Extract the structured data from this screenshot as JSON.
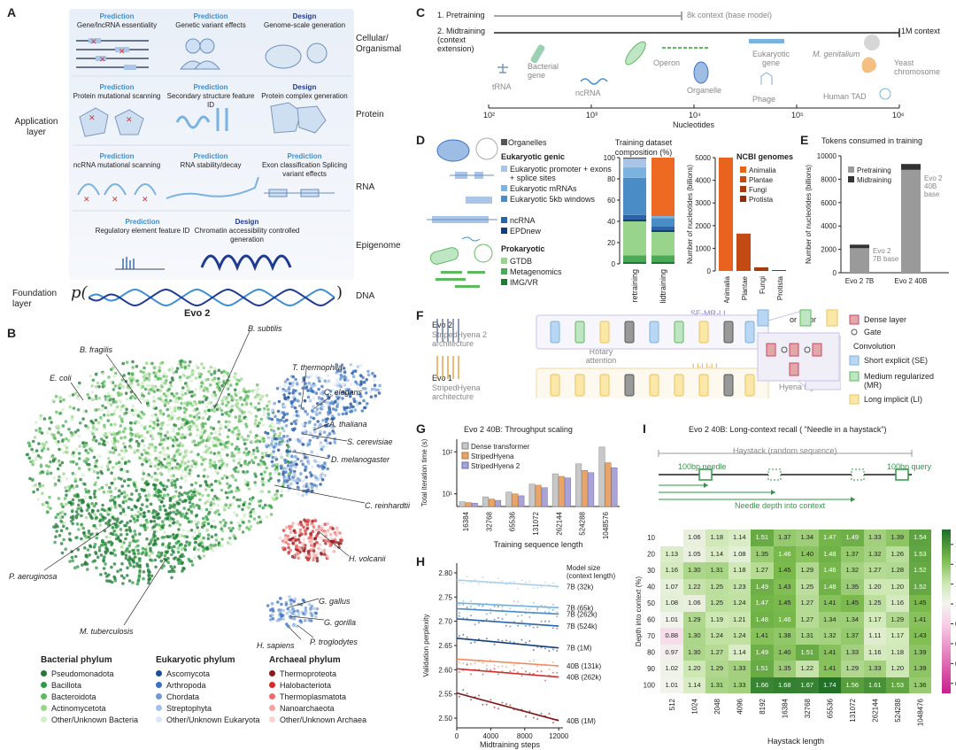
{
  "panels": {
    "a": "A",
    "b": "B",
    "c": "C",
    "d": "D",
    "e": "E",
    "f": "F",
    "g": "G",
    "h": "H",
    "i": "I"
  },
  "panelA": {
    "application_layer": "Application layer",
    "foundation_layer": "Foundation layer",
    "model_name": "Evo 2",
    "p_open": "p(",
    "p_close": ")",
    "rows": [
      {
        "label": "Cellular/ Organismal",
        "items": [
          {
            "kind": "Prediction",
            "text": "Gene/lncRNA essentiality"
          },
          {
            "kind": "Prediction",
            "text": "Genetic variant effects"
          },
          {
            "kind": "Design",
            "text": "Genome-scale generation"
          }
        ]
      },
      {
        "label": "Protein",
        "items": [
          {
            "kind": "Prediction",
            "text": "Protein mutational scanning"
          },
          {
            "kind": "Prediction",
            "text": "Secondary structure feature ID"
          },
          {
            "kind": "Design",
            "text": "Protein complex generation"
          }
        ]
      },
      {
        "label": "RNA",
        "items": [
          {
            "kind": "Prediction",
            "text": "ncRNA mutational scanning"
          },
          {
            "kind": "Prediction",
            "text": "RNA stability/decay"
          },
          {
            "kind": "Prediction",
            "text": "Exon classification Splicing variant effects"
          }
        ]
      },
      {
        "label": "Epigenome",
        "items": [
          {
            "kind": "Prediction",
            "text": "Regulatory element feature ID"
          },
          {
            "kind": "Design",
            "text": "Chromatin accessibility controlled generation"
          }
        ]
      }
    ],
    "dna_label": "DNA"
  },
  "panelB": {
    "species": [
      "B. subtilis",
      "B. fragilis",
      "E. coli",
      "T. thermophila",
      "C. elegans",
      "A. thaliana",
      "S. cerevisiae",
      "D. melanogaster",
      "C. reinhardtii",
      "H. volcanii",
      "P. aeruginosa",
      "M. tuberculosis",
      "G. gallus",
      "G. gorilla",
      "H. sapiens",
      "P. troglodytes"
    ],
    "legend": {
      "bacterial_title": "Bacterial phylum",
      "bacterial": [
        {
          "name": "Pseudomonadota",
          "color": "#1e7a34"
        },
        {
          "name": "Bacillota",
          "color": "#2f9a45"
        },
        {
          "name": "Bacteroidota",
          "color": "#5cbb5c"
        },
        {
          "name": "Actinomycetota",
          "color": "#98d48b"
        },
        {
          "name": "Other/Unknown Bacteria",
          "color": "#d5edc9"
        }
      ],
      "eukaryotic_title": "Eukaryotic phylum",
      "eukaryotic": [
        {
          "name": "Ascomycota",
          "color": "#1c4f9c"
        },
        {
          "name": "Arthropoda",
          "color": "#3a72c1"
        },
        {
          "name": "Chordata",
          "color": "#6f9ad6"
        },
        {
          "name": "Streptophyta",
          "color": "#a5c0e8"
        },
        {
          "name": "Other/Unknown Eukaryota",
          "color": "#dce8f7"
        }
      ],
      "archaeal_title": "Archaeal phylum",
      "archaeal": [
        {
          "name": "Thermoproteota",
          "color": "#8b1a1a"
        },
        {
          "name": "Halobacteriota",
          "color": "#d42a2a"
        },
        {
          "name": "Thermoplasmatota",
          "color": "#ef6c6c"
        },
        {
          "name": "Nanoarchaeota",
          "color": "#f5a3a3"
        },
        {
          "name": "Other/Unknown Archaea",
          "color": "#fbd3d3"
        }
      ]
    }
  },
  "panelC": {
    "row1": "1. Pretraining",
    "row1_note": "8k context (base model)",
    "row2": "2. Midtraining (context extension)",
    "row2_note": "1M context",
    "items": [
      "tRNA",
      "Bacterial gene",
      "ncRNA",
      "Operon",
      "Organelle",
      "Eukaryotic gene",
      "Phage",
      "M. genitalium",
      "Yeast chromosome",
      "Human TAD"
    ],
    "ticks": [
      "10²",
      "10³",
      "10⁴",
      "10⁵",
      "10⁶"
    ],
    "xlabel": "Nucleotides"
  },
  "panelD": {
    "organelles": "Organelles",
    "euk_title": "Eukaryotic genic",
    "euk_items": [
      "Eukaryotic promoter + exons + splice sites",
      "Eukaryotic mRNAs",
      "Eukaryotic 5kb windows",
      "ncRNA",
      "EPDnew"
    ],
    "prok_title": "Prokaryotic",
    "prok_items": [
      "GTDB",
      "Metagenomics",
      "IMG/VR"
    ],
    "comp_title": "Training dataset composition (%)",
    "comp_yticks": [
      "0",
      "20",
      "40",
      "60",
      "80",
      "100"
    ],
    "comp_bars": [
      "Pretraining",
      "Midtraining"
    ],
    "ncbi_title": "NCBI genomes",
    "ncbi_items": [
      "Animalia",
      "Plantae",
      "Fungi",
      "Protista"
    ],
    "ncbi_ylabel": "Number of nucleotides (billions)",
    "ncbi_yticks": [
      "0",
      "1000",
      "2000",
      "3000",
      "4000",
      "5000"
    ]
  },
  "panelE": {
    "title": "Tokens consumed in training",
    "ylabel": "Number of nucleotides (billions)",
    "yticks": [
      "0",
      "2000",
      "4000",
      "6000",
      "8000",
      "10000"
    ],
    "legend": [
      "Pretraining",
      "Midtraining"
    ],
    "bars": [
      "Evo 2 7B",
      "Evo 2 40B"
    ],
    "ann7b": "Evo 2 7B base",
    "ann40b": "Evo 2 40B base"
  },
  "panelF": {
    "evo2": "Evo 2",
    "evo2_arch": "StripedHyena 2 architecture",
    "evo1": "Evo 1",
    "evo1_arch": "StripedHyena architecture",
    "rotary": "Rotary attention",
    "se_mr_li": "SE-MR-LI",
    "li_li_li": "LI-LI-LI",
    "or1": "or",
    "or2": "or",
    "hyena": "Hyena layer",
    "legend_dense": "Dense layer",
    "legend_gate": "Gate",
    "legend_conv": "Convolution",
    "legend_se": "Short explicit (SE)",
    "legend_mr": "Medium regularized (MR)",
    "legend_li": "Long implicit (LI)"
  },
  "panelG": {
    "title": "Evo 2 40B: Throughput scaling",
    "ylabel": "Total iteration time (s)",
    "xlabel": "Training sequence length",
    "yticks": [
      "10¹",
      "10²"
    ],
    "legend": [
      "Dense transformer",
      "StripedHyena",
      "StripedHyena 2"
    ]
  },
  "panelH": {
    "ylabel": "Validation perplexity",
    "xlabel": "Midtraining steps",
    "legend_title": "Model size (context length)",
    "yticks": [
      "2.50",
      "2.55",
      "2.60",
      "2.65",
      "2.70",
      "2.75",
      "2.80"
    ],
    "xticks": [
      "0",
      "4000",
      "8000",
      "12000"
    ]
  },
  "panelI": {
    "title": "Evo 2 40B: Long-context recall ( \"Needle in a haystack\")",
    "haystack": "Haystack (random sequence)",
    "needle": "100bp needle",
    "query": "100bp query",
    "depth_label": "Needle depth into context",
    "ylabel": "Depth into context (%)",
    "xlabel": "Haystack length",
    "cbar_label": "Score",
    "cbar_ticks": [
      "0.2",
      "0.4",
      "0.6",
      "0.8",
      "1.0",
      "1.2",
      "1.4",
      "1.6"
    ]
  },
  "chart_data": [
    {
      "type": "bar",
      "title": "Training dataset composition (%)",
      "categories": [
        "Pretraining",
        "Midtraining"
      ],
      "series": [
        {
          "name": "IMG/VR",
          "values": [
            2,
            2
          ]
        },
        {
          "name": "Metagenomics",
          "values": [
            6,
            6
          ]
        },
        {
          "name": "GTDB",
          "values": [
            32,
            22
          ]
        },
        {
          "name": "EPDnew",
          "values": [
            2,
            2
          ]
        },
        {
          "name": "ncRNA",
          "values": [
            4,
            3
          ]
        },
        {
          "name": "Eukaryotic 5kb windows",
          "values": [
            35,
            8
          ]
        },
        {
          "name": "Eukaryotic mRNAs",
          "values": [
            10,
            2
          ]
        },
        {
          "name": "Eukaryotic promoter + exons + splice sites",
          "values": [
            8,
            0
          ]
        },
        {
          "name": "Organelles",
          "values": [
            1,
            55
          ]
        }
      ],
      "ylim": [
        0,
        100
      ]
    },
    {
      "type": "bar",
      "title": "NCBI genomes",
      "categories": [
        "Animalia",
        "Plantae",
        "Fungi",
        "Protista"
      ],
      "values": [
        5050,
        1650,
        160,
        40
      ],
      "ylabel": "Number of nucleotides (billions)",
      "ylim": [
        0,
        5000
      ]
    },
    {
      "type": "bar",
      "title": "Tokens consumed in training",
      "categories": [
        "Evo 2 7B",
        "Evo 2 40B"
      ],
      "series": [
        {
          "name": "Pretraining",
          "values": [
            2100,
            8800
          ]
        },
        {
          "name": "Midtraining",
          "values": [
            300,
            500
          ]
        }
      ],
      "ylabel": "Number of nucleotides (billions)",
      "ylim": [
        0,
        10000
      ]
    },
    {
      "type": "bar",
      "title": "Evo 2 40B: Throughput scaling",
      "categories": [
        "16384",
        "32768",
        "65536",
        "131072",
        "262144",
        "524288",
        "1048576"
      ],
      "series": [
        {
          "name": "Dense transformer",
          "values": [
            6.5,
            8.5,
            11,
            17,
            30,
            52,
            130
          ]
        },
        {
          "name": "StripedHyena",
          "values": [
            6.2,
            7.5,
            10,
            16,
            26,
            36,
            55
          ]
        },
        {
          "name": "StripedHyena 2",
          "values": [
            6,
            7,
            9,
            14,
            24,
            32,
            42
          ]
        }
      ],
      "xlabel": "Training sequence length",
      "ylabel": "Total iteration time (s)",
      "yscale": "log"
    },
    {
      "type": "line",
      "x": [
        0,
        12000
      ],
      "series": [
        {
          "name": "7B (32k)",
          "values": [
            2.785,
            2.772
          ],
          "color": "#a9d0e8"
        },
        {
          "name": "7B (65k)",
          "values": [
            2.738,
            2.728
          ],
          "color": "#73b3dc"
        },
        {
          "name": "7B (262k)",
          "values": [
            2.726,
            2.715
          ],
          "color": "#4a8cc5"
        },
        {
          "name": "7B (524k)",
          "values": [
            2.705,
            2.69
          ],
          "color": "#2a63a6"
        },
        {
          "name": "7B (1M)",
          "values": [
            2.665,
            2.645
          ],
          "color": "#163e78"
        },
        {
          "name": "40B (131k)",
          "values": [
            2.622,
            2.608
          ],
          "color": "#f08a5d"
        },
        {
          "name": "40B (262k)",
          "values": [
            2.602,
            2.585
          ],
          "color": "#d02c2c"
        },
        {
          "name": "40B (1M)",
          "values": [
            2.552,
            2.495
          ],
          "color": "#7a1515"
        }
      ],
      "xlabel": "Midtraining steps",
      "ylabel": "Validation perplexity",
      "ylim": [
        2.48,
        2.82
      ]
    },
    {
      "type": "heatmap",
      "x": [
        "512",
        "1024",
        "2048",
        "4096",
        "8192",
        "16384",
        "32768",
        "65536",
        "131072",
        "262144",
        "524288",
        "1048476"
      ],
      "y": [
        "10",
        "20",
        "30",
        "40",
        "50",
        "60",
        "70",
        "80",
        "90",
        "100"
      ],
      "values": [
        [
          null,
          1.06,
          1.18,
          1.14,
          1.51,
          1.37,
          1.34,
          1.47,
          1.49,
          1.33,
          1.39,
          1.54
        ],
        [
          1.13,
          1.05,
          1.14,
          1.08,
          1.35,
          1.46,
          1.4,
          1.48,
          1.37,
          1.32,
          1.26,
          1.53
        ],
        [
          1.16,
          1.3,
          1.31,
          1.18,
          1.27,
          1.45,
          1.29,
          1.46,
          1.32,
          1.27,
          1.28,
          1.52
        ],
        [
          1.07,
          1.22,
          1.25,
          1.23,
          1.49,
          1.43,
          1.25,
          1.48,
          1.35,
          1.2,
          1.2,
          1.52
        ],
        [
          1.08,
          1.06,
          1.25,
          1.24,
          1.47,
          1.45,
          1.27,
          1.41,
          1.45,
          1.25,
          1.16,
          1.45
        ],
        [
          1.01,
          1.29,
          1.19,
          1.21,
          1.48,
          1.46,
          1.27,
          1.34,
          1.34,
          1.17,
          1.29,
          1.41
        ],
        [
          0.88,
          1.3,
          1.24,
          1.24,
          1.41,
          1.38,
          1.31,
          1.32,
          1.37,
          1.11,
          1.17,
          1.43
        ],
        [
          0.97,
          1.3,
          1.27,
          1.14,
          1.49,
          1.4,
          1.51,
          1.41,
          1.33,
          1.16,
          1.18,
          1.39
        ],
        [
          1.02,
          1.2,
          1.29,
          1.33,
          1.51,
          1.35,
          1.22,
          1.41,
          1.29,
          1.33,
          1.2,
          1.39
        ],
        [
          1.01,
          1.14,
          1.31,
          1.33,
          1.66,
          1.68,
          1.67,
          1.74,
          1.56,
          1.61,
          1.53,
          1.36
        ]
      ],
      "xlabel": "Haystack length",
      "ylabel": "Depth into context (%)",
      "colorbar": "Score",
      "vmin": 0.1,
      "vmax": 1.75
    }
  ]
}
